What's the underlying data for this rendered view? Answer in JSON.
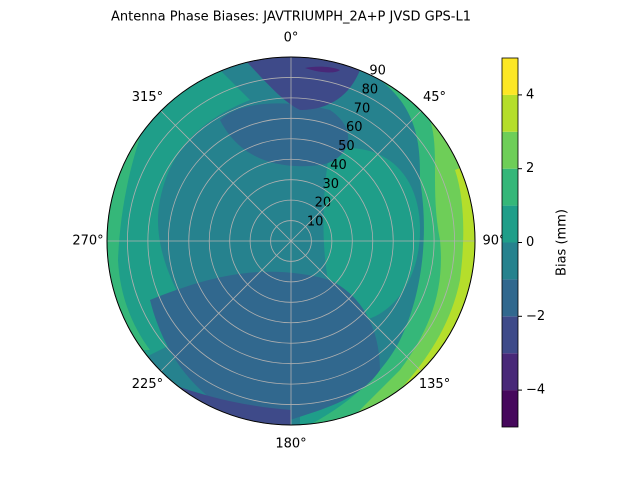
{
  "chart_data": {
    "type": "polar_contour",
    "title": "Antenna Phase Biases: JAVTRIUMPH_2A+P JVSD GPS-L1",
    "theta_ticks": [
      {
        "value": 0,
        "label": "0°"
      },
      {
        "value": 45,
        "label": "45°"
      },
      {
        "value": 90,
        "label": "90°"
      },
      {
        "value": 135,
        "label": "135°"
      },
      {
        "value": 180,
        "label": "180°"
      },
      {
        "value": 225,
        "label": "225°"
      },
      {
        "value": 270,
        "label": "270°"
      },
      {
        "value": 315,
        "label": "315°"
      }
    ],
    "rlim": [
      0,
      90
    ],
    "rticks": [
      10,
      20,
      30,
      40,
      50,
      60,
      70,
      80,
      90
    ],
    "grid": true,
    "levels": [
      -5,
      -4,
      -3,
      -2,
      -1,
      0,
      1,
      2,
      3,
      4,
      5
    ],
    "colors": [
      "#46085c",
      "#482878",
      "#3e4a89",
      "#31688e",
      "#26828e",
      "#1f9e89",
      "#35b779",
      "#6ece58",
      "#b5de2b",
      "#fde725"
    ],
    "colorbar_label": "Bias (mm)",
    "cticks": [
      {
        "value": -4,
        "label": "−4"
      },
      {
        "value": -2,
        "label": "−2"
      },
      0,
      2,
      4
    ]
  }
}
